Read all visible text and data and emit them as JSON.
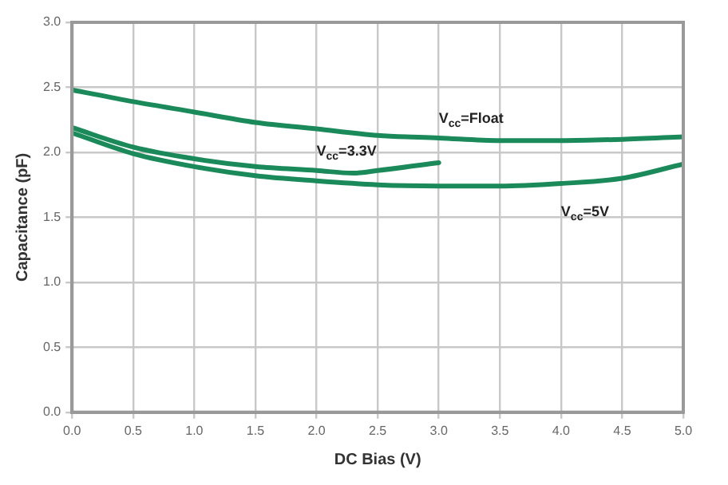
{
  "chart_data": {
    "type": "line",
    "xlabel": "DC Bias (V)",
    "ylabel": "Capacitance (pF)",
    "xlim": [
      0,
      5
    ],
    "xticks": [
      {
        "value": 0,
        "label": "0.0"
      },
      {
        "value": 0.5,
        "label": "0.5"
      },
      {
        "value": 1,
        "label": "1.0"
      },
      {
        "value": 1.5,
        "label": "1.5"
      },
      {
        "value": 2,
        "label": "2.0"
      },
      {
        "value": 2.5,
        "label": "2.5"
      },
      {
        "value": 3,
        "label": "3.0"
      },
      {
        "value": 3.5,
        "label": "3.5"
      },
      {
        "value": 4,
        "label": "4.0"
      },
      {
        "value": 4.5,
        "label": "4.5"
      },
      {
        "value": 5,
        "label": "5.0"
      }
    ],
    "ylim": [
      0,
      3
    ],
    "yticks": [
      {
        "value": 0,
        "label": "0.0"
      },
      {
        "value": 0.5,
        "label": "0.5"
      },
      {
        "value": 1,
        "label": "1.0"
      },
      {
        "value": 1.5,
        "label": "1.5"
      },
      {
        "value": 2,
        "label": "2.0"
      },
      {
        "value": 2.5,
        "label": "2.5"
      },
      {
        "value": 3,
        "label": "3.0"
      }
    ],
    "grid": true,
    "legend": false,
    "marker": "none",
    "line_style": "solid",
    "series": [
      {
        "name": "V$_{cc}$=Float",
        "color": "#1b8a5a",
        "x": [
          0,
          0.5,
          1,
          1.5,
          2,
          2.5,
          3,
          3.5,
          4,
          4.5,
          5
        ],
        "values": [
          2.48,
          2.39,
          2.31,
          2.23,
          2.18,
          2.13,
          2.11,
          2.09,
          2.09,
          2.1,
          2.12
        ]
      },
      {
        "name": "V$_{cc}$=3.3V",
        "color": "#1b8a5a",
        "x": [
          0,
          0.5,
          1,
          1.5,
          2,
          2.3,
          2.5,
          3
        ],
        "values": [
          2.19,
          2.04,
          1.95,
          1.89,
          1.86,
          1.84,
          1.86,
          1.92
        ]
      },
      {
        "name": "V$_{cc}$=5V",
        "color": "#1b8a5a",
        "x": [
          0,
          0.5,
          1,
          1.5,
          2,
          2.5,
          3,
          3.5,
          4,
          4.5,
          5
        ],
        "values": [
          2.15,
          1.99,
          1.89,
          1.82,
          1.78,
          1.75,
          1.74,
          1.74,
          1.76,
          1.8,
          1.91
        ]
      }
    ]
  }
}
